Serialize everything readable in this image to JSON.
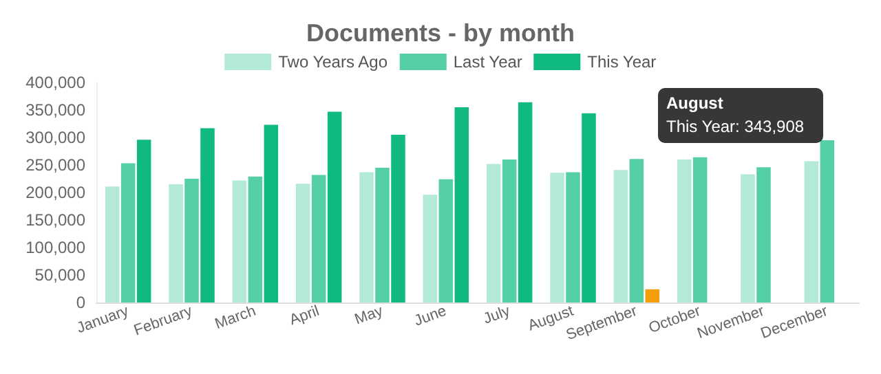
{
  "chart_data": {
    "type": "bar",
    "title": "Documents - by month",
    "categories": [
      "January",
      "February",
      "March",
      "April",
      "May",
      "June",
      "July",
      "August",
      "September",
      "October",
      "November",
      "December"
    ],
    "series": [
      {
        "name": "Two Years Ago",
        "color": "#b3ead6",
        "values": [
          211000,
          215000,
          222000,
          216000,
          237000,
          196000,
          252000,
          236000,
          241000,
          260000,
          233000,
          257000
        ]
      },
      {
        "name": "Last Year",
        "color": "#55cfa6",
        "values": [
          253000,
          225000,
          229000,
          232000,
          245000,
          224000,
          260000,
          237000,
          261000,
          264000,
          246000,
          295000
        ]
      },
      {
        "name": "This Year",
        "color": "#10b981",
        "colors": [
          "#10b981",
          "#10b981",
          "#10b981",
          "#10b981",
          "#10b981",
          "#10b981",
          "#10b981",
          "#10b981",
          "#f59e0b",
          "#10b981",
          "#10b981",
          "#10b981"
        ],
        "values": [
          296000,
          317000,
          323000,
          347000,
          305000,
          355000,
          364000,
          343908,
          24000,
          null,
          null,
          null
        ]
      }
    ],
    "ylim": [
      0,
      400000
    ],
    "yticks": [
      0,
      {
        "value": 50000,
        "label": "50,000"
      },
      {
        "value": 100000,
        "label": "100,000"
      },
      {
        "value": 150000,
        "label": "150,000"
      },
      {
        "value": 200000,
        "label": "200,000"
      },
      {
        "value": 250000,
        "label": "250,000"
      },
      {
        "value": 300000,
        "label": "300,000"
      },
      {
        "value": 350000,
        "label": "350,000"
      },
      {
        "value": 400000,
        "label": "400,000"
      }
    ],
    "grid": false,
    "legend": "top",
    "annotations": [
      "August\nThis Year: 343,908"
    ]
  }
}
